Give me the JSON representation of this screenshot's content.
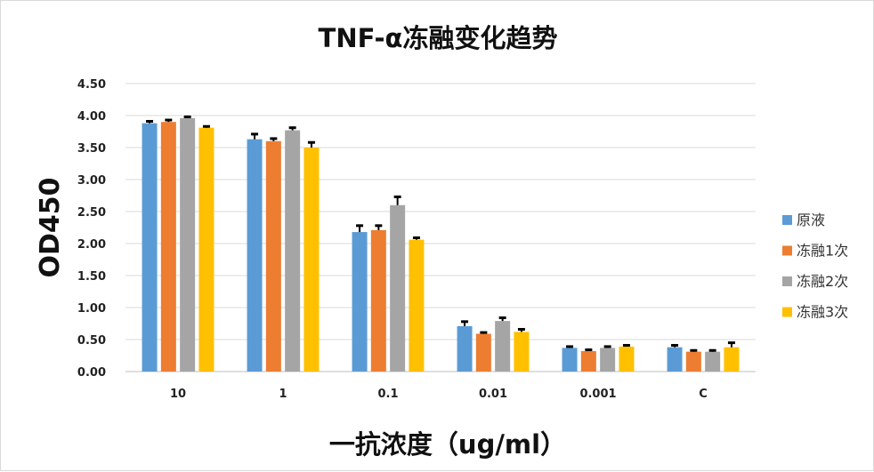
{
  "chart_data": {
    "type": "bar",
    "title": "TNF-α冻融变化趋势",
    "xlabel": "一抗浓度（ug/ml）",
    "ylabel": "OD450",
    "categories": [
      "10",
      "1",
      "0.1",
      "0.01",
      "0.001",
      "C"
    ],
    "ylim": [
      0,
      4.5
    ],
    "yticks": [
      "0.00",
      "0.50",
      "1.00",
      "1.50",
      "2.00",
      "2.50",
      "3.00",
      "3.50",
      "4.00",
      "4.50"
    ],
    "grid": true,
    "legend_position": "right",
    "series": [
      {
        "name": "原液",
        "color": "#5B9BD5",
        "values": [
          3.88,
          3.63,
          2.18,
          0.71,
          0.37,
          0.38
        ],
        "errors": [
          0.03,
          0.08,
          0.1,
          0.07,
          0.02,
          0.03
        ]
      },
      {
        "name": "冻融1次",
        "color": "#ED7D31",
        "values": [
          3.9,
          3.6,
          2.21,
          0.59,
          0.32,
          0.31
        ],
        "errors": [
          0.03,
          0.04,
          0.07,
          0.02,
          0.02,
          0.02
        ]
      },
      {
        "name": "冻融2次",
        "color": "#A5A5A5",
        "values": [
          3.96,
          3.77,
          2.6,
          0.79,
          0.37,
          0.31
        ],
        "errors": [
          0.02,
          0.04,
          0.13,
          0.05,
          0.02,
          0.02
        ]
      },
      {
        "name": "冻融3次",
        "color": "#FFC000",
        "values": [
          3.81,
          3.5,
          2.06,
          0.62,
          0.39,
          0.38
        ],
        "errors": [
          0.02,
          0.08,
          0.03,
          0.04,
          0.02,
          0.07
        ]
      }
    ]
  }
}
